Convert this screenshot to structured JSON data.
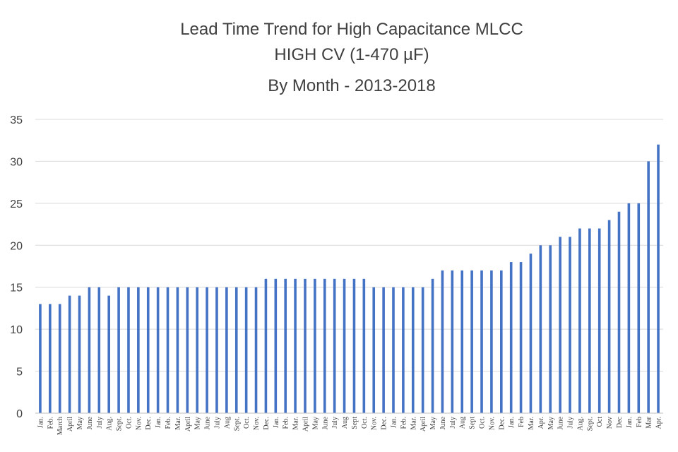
{
  "chart_data": {
    "type": "bar",
    "title": "Lead Time Trend for High Capacitance MLCC",
    "subtitle": "HIGH CV (1-470 µF)",
    "subtitle2": "By Month - 2013-2018",
    "xlabel": "",
    "ylabel": "",
    "ylim": [
      0,
      35
    ],
    "yticks": [
      0,
      5,
      10,
      15,
      20,
      25,
      30,
      35
    ],
    "grid": true,
    "legend": "none",
    "bar_color": "#4472c4",
    "categories": [
      "Jan.",
      "Feb.",
      "March",
      "April",
      "May",
      "June",
      "July",
      "Aug.",
      "Sept.",
      "Oct.",
      "Nov.",
      "Dec.",
      "Jan.",
      "Feb.",
      "Mar.",
      "April",
      "May",
      "June",
      "July",
      "Aug",
      "Sept.",
      "Oct.",
      "Nov.",
      "Dec.",
      "Jan.",
      "Feb.",
      "Mar.",
      "April",
      "May",
      "June",
      "July",
      "Aug",
      "Sept",
      "Oct.",
      "Nov.",
      "Dec.",
      "Jan.",
      "Feb.",
      "Mar.",
      "April",
      "May",
      "June",
      "July",
      "Aug",
      "Sept",
      "Oct.",
      "Nov.",
      "Dec.",
      "Jan.",
      "Feb",
      "Mar.",
      "Apr.",
      "May",
      "June",
      "July",
      "Aug.",
      "Sept.",
      "Oct",
      "Nov",
      "Dec",
      "Jan.",
      "Feb",
      "Mar",
      "Apr."
    ],
    "values": [
      13,
      13,
      13,
      14,
      14,
      15,
      15,
      14,
      15,
      15,
      15,
      15,
      15,
      15,
      15,
      15,
      15,
      15,
      15,
      15,
      15,
      15,
      15,
      16,
      16,
      16,
      16,
      16,
      16,
      16,
      16,
      16,
      16,
      16,
      15,
      15,
      15,
      15,
      15,
      15,
      16,
      17,
      17,
      17,
      17,
      17,
      17,
      17,
      18,
      18,
      19,
      20,
      20,
      21,
      21,
      22,
      22,
      22,
      23,
      24,
      25,
      25,
      30,
      32
    ]
  }
}
